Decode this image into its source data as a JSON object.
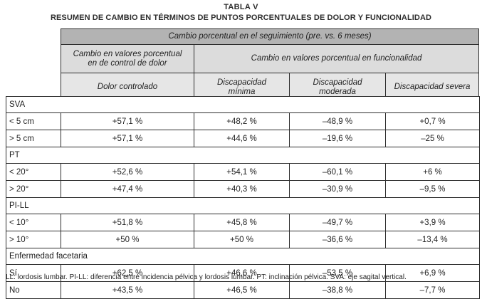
{
  "title": "TABLA V",
  "subtitle": "RESUMEN DE CAMBIO EN TÉRMINOS DE PUNTOS PORCENTUALES DE DOLOR Y FUNCIONALIDAD",
  "table": {
    "top_header": "Cambio porcentual en el seguimiento (pre. vs. 6 meses)",
    "group_headers": {
      "pain": "Cambio en valores porcentual\nen de control de dolor",
      "function": "Cambio en valores porcentual en  funcionalidad"
    },
    "column_headers": [
      "Dolor controlado",
      "Discapacidad\nmínima",
      "Discapacidad\nmoderada",
      "Discapacidad severa"
    ],
    "sections": [
      {
        "label": "SVA",
        "rows": [
          {
            "label": "< 5 cm",
            "values": [
              "+57,1 %",
              "+48,2 %",
              "–48,9 %",
              "+0,7 %"
            ]
          },
          {
            "label": "> 5 cm",
            "values": [
              "+57,1 %",
              "+44,6 %",
              "–19,6 %",
              "–25 %"
            ]
          }
        ]
      },
      {
        "label": "PT",
        "rows": [
          {
            "label": "< 20°",
            "values": [
              "+52,6 %",
              "+54,1 %",
              "–60,1 %",
              "+6 %"
            ]
          },
          {
            "label": "> 20°",
            "values": [
              "+47,4 %",
              "+40,3 %",
              "–30,9 %",
              "–9,5 %"
            ]
          }
        ]
      },
      {
        "label": "PI-LL",
        "rows": [
          {
            "label": "< 10°",
            "values": [
              "+51,8 %",
              "+45,8 %",
              "–49,7 %",
              "+3,9 %"
            ]
          },
          {
            "label": "> 10°",
            "values": [
              "+50 %",
              "+50 %",
              "–36,6 %",
              "–13,4 %"
            ]
          }
        ]
      },
      {
        "label": "Enfermedad facetaria",
        "rows": [
          {
            "label": "Sí",
            "values": [
              "+62,5 %",
              "+46,6 %",
              "–53,5 %",
              "+6,9 %"
            ]
          },
          {
            "label": "No",
            "values": [
              "+43,5 %",
              "+46,5 %",
              "–38,8 %",
              "–7,7 %"
            ]
          }
        ]
      }
    ]
  },
  "footnote": "LL: lordosis lumbar. PI-LL: diferencia entre incidencia pélvica y lordosis lumbar. PT: inclinación pélvica. SVA: eje sagital vertical.",
  "colors": {
    "header_dark": "#b3b3b3",
    "header_medium": "#dcdcdc",
    "header_light": "#e6e6e6",
    "border": "#2e2e2e",
    "text": "#1f1f1f"
  }
}
